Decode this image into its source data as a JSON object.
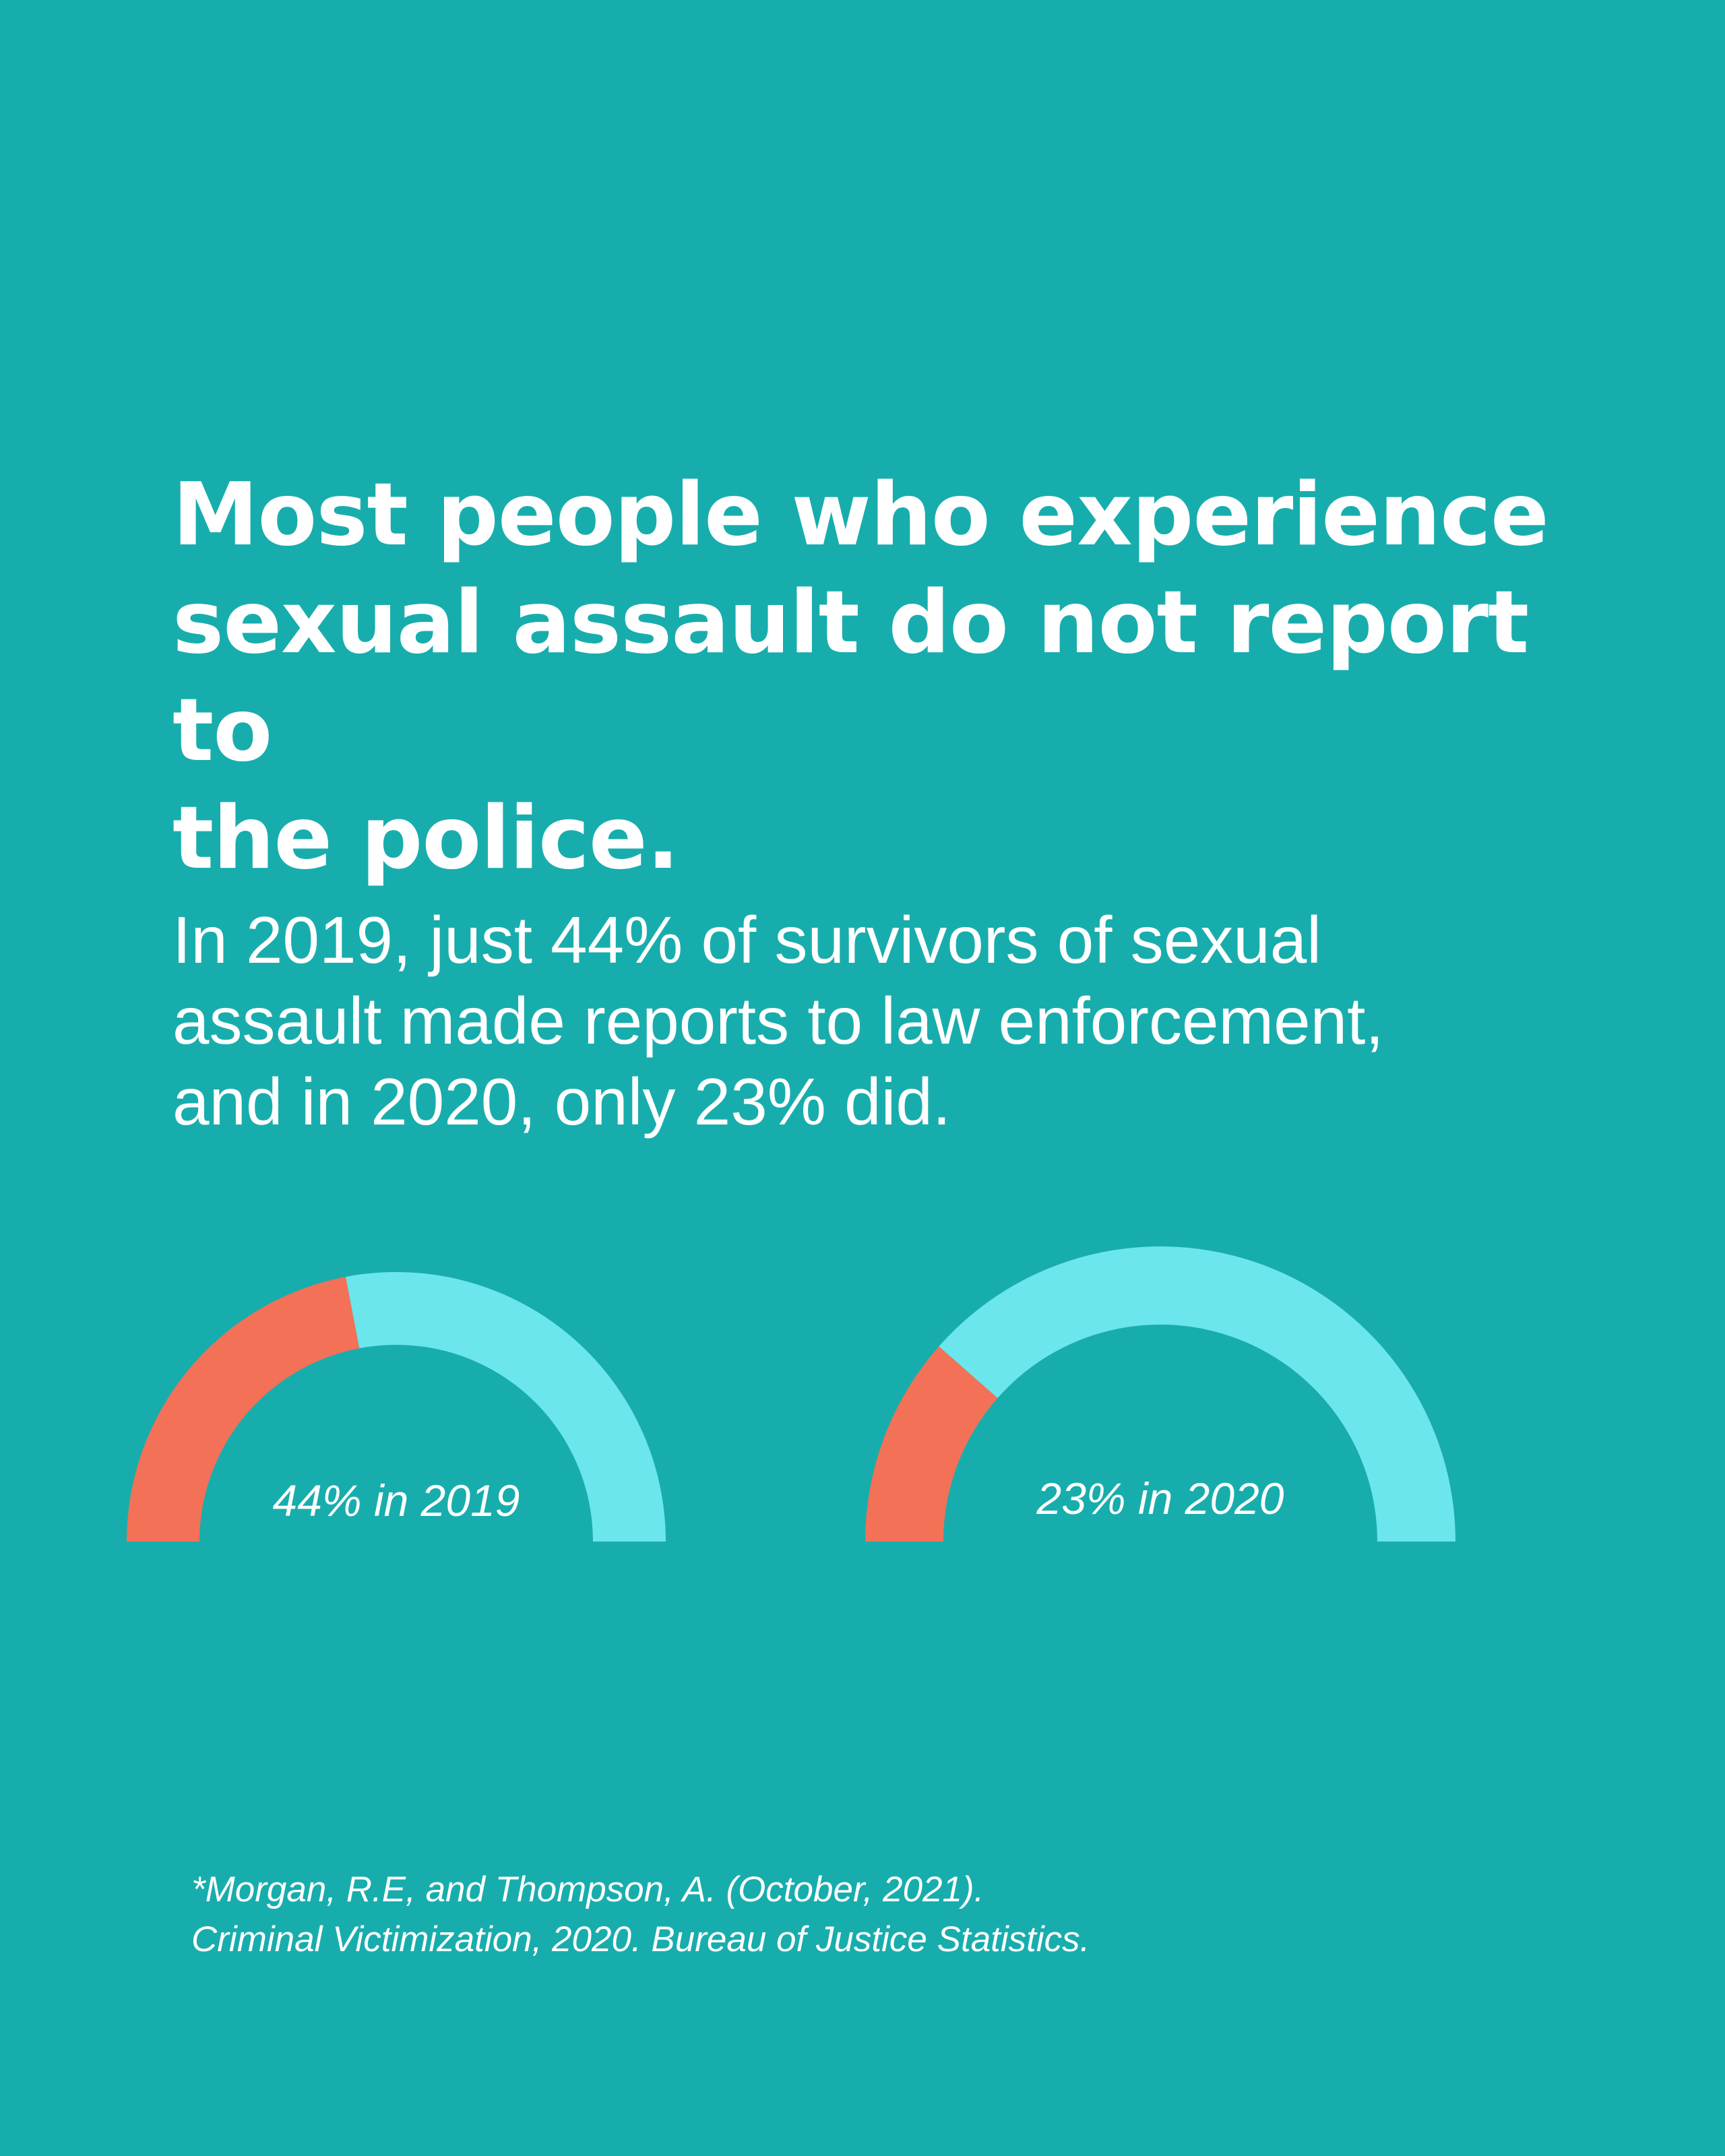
{
  "headline": {
    "line1": "Most people who experience",
    "line2": "sexual assault do not report to",
    "line3": "the police."
  },
  "subtext": {
    "line1": "In 2019, just 44% of survivors of sexual",
    "line2": "assault made reports to law enforcement,",
    "line3": "and in 2020, only 23% did."
  },
  "chart_data": [
    {
      "type": "pie",
      "style": "half-donut",
      "label": "44% in 2019",
      "slices": [
        {
          "value": 44,
          "color": "#f27157"
        },
        {
          "value": 56,
          "color": "#6be6ec"
        }
      ]
    },
    {
      "type": "pie",
      "style": "half-donut",
      "label": "23% in 2020",
      "slices": [
        {
          "value": 23,
          "color": "#f27157"
        },
        {
          "value": 77,
          "color": "#6be6ec"
        }
      ]
    }
  ],
  "citation": {
    "line1": "*Morgan, R.E, and Thompson, A. (October, 2021).",
    "line2": "Criminal Victimization, 2020. Bureau of Justice Statistics."
  },
  "colors": {
    "background": "#18adad",
    "reported": "#f27157",
    "not_reported": "#6be6ec",
    "text": "#ffffff"
  }
}
